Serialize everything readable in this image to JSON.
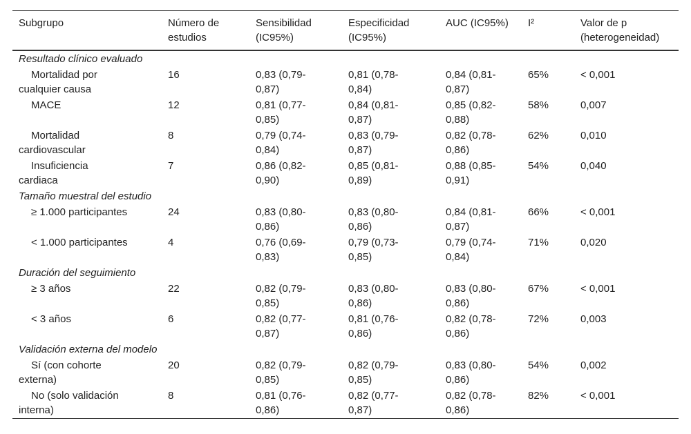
{
  "table": {
    "header": [
      "Subgrupo",
      "Número de estudios",
      "Sensibilidad (IC95%)",
      "Especificidad (IC95%)",
      "AUC (IC95%)",
      "I²",
      "Valor de p (heterogeneidad)"
    ],
    "groups": [
      {
        "title": "Resultado clínico evaluado",
        "rows": [
          [
            "Mortalidad por cualquier causa",
            "16",
            "0,83 (0,79-0,87)",
            "0,81 (0,78-0,84)",
            "0,84 (0,81-0,87)",
            "65%",
            "< 0,001"
          ],
          [
            "MACE",
            "12",
            "0,81 (0,77-0,85)",
            "0,84 (0,81-0,87)",
            "0,85 (0,82-0,88)",
            "58%",
            "0,007"
          ],
          [
            "Mortalidad cardiovascular",
            "8",
            "0,79 (0,74-0,84)",
            "0,83 (0,79-0,87)",
            "0,82 (0,78-0,86)",
            "62%",
            "0,010"
          ],
          [
            "Insuficiencia cardiaca",
            "7",
            "0,86 (0,82-0,90)",
            "0,85 (0,81-0,89)",
            "0,88 (0,85-0,91)",
            "54%",
            "0,040"
          ]
        ]
      },
      {
        "title": "Tamaño muestral del estudio",
        "rows": [
          [
            "≥ 1.000 participantes",
            "24",
            "0,83 (0,80-0,86)",
            "0,83 (0,80-0,86)",
            "0,84 (0,81-0,87)",
            "66%",
            "< 0,001"
          ],
          [
            "< 1.000 participantes",
            "4",
            "0,76 (0,69-0,83)",
            "0,79 (0,73-0,85)",
            "0,79 (0,74-0,84)",
            "71%",
            "0,020"
          ]
        ]
      },
      {
        "title": "Duración del seguimiento",
        "rows": [
          [
            "≥ 3 años",
            "22",
            "0,82 (0,79-0,85)",
            "0,83 (0,80-0,86)",
            "0,83 (0,80-0,86)",
            "67%",
            "< 0,001"
          ],
          [
            "< 3 años",
            "6",
            "0,82 (0,77-0,87)",
            "0,81 (0,76-0,86)",
            "0,82 (0,78-0,86)",
            "72%",
            "0,003"
          ]
        ]
      },
      {
        "title": "Validación externa del modelo",
        "rows": [
          [
            "Sí (con cohorte externa)",
            "20",
            "0,82 (0,79-0,85)",
            "0,82 (0,79-0,85)",
            "0,83 (0,80-0,86)",
            "54%",
            "0,002"
          ],
          [
            "No (solo validación interna)",
            "8",
            "0,81 (0,76-0,86)",
            "0,82 (0,77-0,87)",
            "0,82 (0,78-0,86)",
            "82%",
            "< 0,001"
          ]
        ]
      }
    ]
  }
}
